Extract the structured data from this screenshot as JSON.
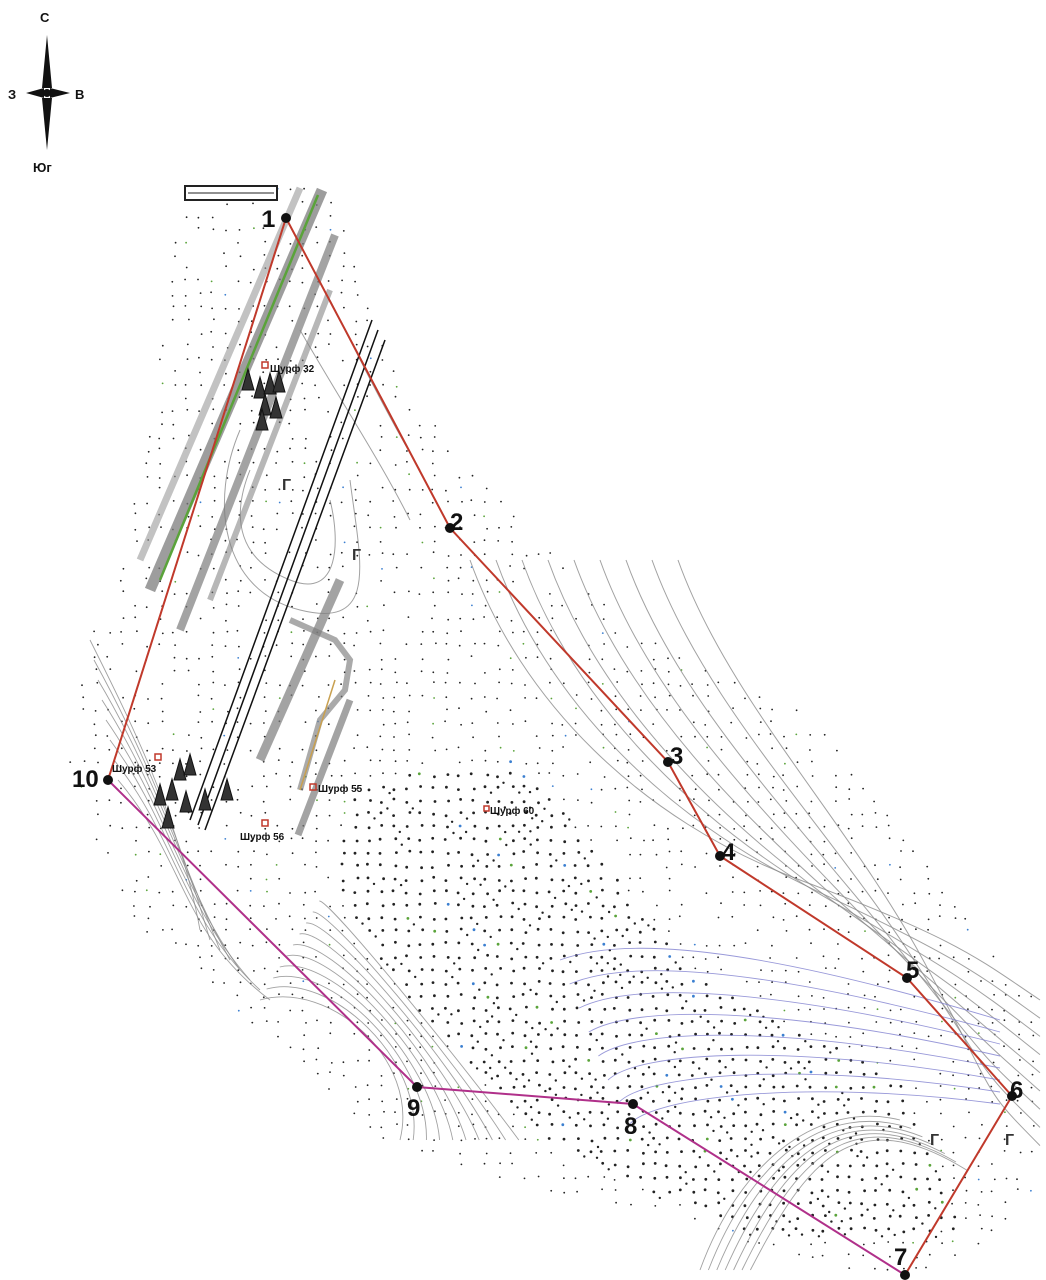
{
  "compass": {
    "north": "С",
    "south": "Юг",
    "east": "В",
    "west": "З"
  },
  "boundary": {
    "color": "#c0392b",
    "south_segment_color": "#b0308a",
    "vertices": [
      {
        "label": "1"
      },
      {
        "label": "2"
      },
      {
        "label": "3"
      },
      {
        "label": "4"
      },
      {
        "label": "5"
      },
      {
        "label": "6"
      },
      {
        "label": "7"
      },
      {
        "label": "8"
      },
      {
        "label": "9"
      },
      {
        "label": "10"
      }
    ]
  },
  "test_pits": [
    {
      "label": "Шурф 32"
    },
    {
      "label": "Шурф 53"
    },
    {
      "label": "Шурф 55"
    },
    {
      "label": "Шурф 56"
    },
    {
      "label": "Шурф 60"
    }
  ],
  "soil_marks": [
    {
      "label": "Г"
    },
    {
      "label": "Г"
    },
    {
      "label": "Г"
    },
    {
      "label": "Г"
    }
  ],
  "colors": {
    "contour_gray": "#8a8a8a",
    "contour_blue": "#7f7fd0",
    "ridge_gray": "#7d7d7d",
    "green_line": "#5aa33a",
    "dots": "#222222",
    "pit_marker": "#c0392b"
  }
}
